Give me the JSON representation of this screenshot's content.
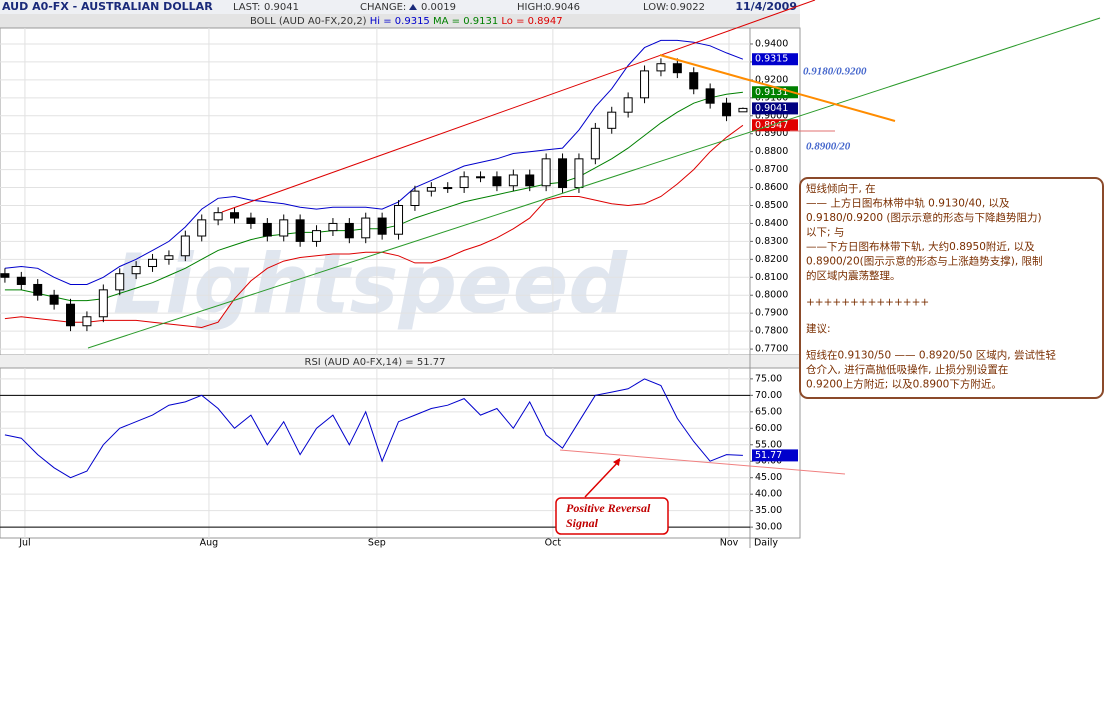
{
  "header": {
    "title": "AUD A0-FX - AUSTRALIAN DOLLAR",
    "last_label": "LAST:",
    "last": "0.9041",
    "change_label": "CHANGE:",
    "change": "0.0019",
    "high_label": "HIGH:",
    "high": "0.9046",
    "low_label": "LOW:",
    "low": "0.9022",
    "date": "11/4/2009"
  },
  "watermark": "Lightspeed",
  "chart_data": [
    {
      "type": "candlestick",
      "title": "BOLL (AUD A0-FX,20,2)",
      "xlim": [
        -0.3,
        45.43
      ],
      "ylim": [
        0.7667,
        0.9489
      ],
      "yticks": [
        {
          "value": 0.94,
          "label": "0.9400"
        },
        {
          "value": 0.93,
          "label": "0.9300"
        },
        {
          "value": 0.92,
          "label": "0.9200"
        },
        {
          "value": 0.91,
          "label": "0.9100"
        },
        {
          "value": 0.9,
          "label": "0.9000"
        },
        {
          "value": 0.89,
          "label": "0.8900"
        },
        {
          "value": 0.88,
          "label": "0.8800"
        },
        {
          "value": 0.87,
          "label": "0.8700"
        },
        {
          "value": 0.86,
          "label": "0.8600"
        },
        {
          "value": 0.85,
          "label": "0.8500"
        },
        {
          "value": 0.84,
          "label": "0.8400"
        },
        {
          "value": 0.83,
          "label": "0.8300"
        },
        {
          "value": 0.82,
          "label": "0.8200"
        },
        {
          "value": 0.81,
          "label": "0.8100"
        },
        {
          "value": 0.8,
          "label": "0.8000"
        },
        {
          "value": 0.79,
          "label": "0.7900"
        },
        {
          "value": 0.78,
          "label": "0.7800"
        },
        {
          "value": 0.77,
          "label": "0.7700"
        }
      ],
      "grid": true,
      "up_color": "#ffffff",
      "down_color": "#000000",
      "open": [
        0.812,
        0.81,
        0.806,
        0.8,
        0.795,
        0.783,
        0.788,
        0.803,
        0.812,
        0.816,
        0.82,
        0.822,
        0.833,
        0.842,
        0.846,
        0.843,
        0.84,
        0.833,
        0.842,
        0.83,
        0.836,
        0.84,
        0.832,
        0.843,
        0.834,
        0.85,
        0.858,
        0.86,
        0.86,
        0.866,
        0.866,
        0.861,
        0.867,
        0.861,
        0.876,
        0.86,
        0.876,
        0.893,
        0.902,
        0.91,
        0.925,
        0.929,
        0.924,
        0.915,
        0.907,
        0.9022
      ],
      "high": [
        0.815,
        0.813,
        0.809,
        0.803,
        0.798,
        0.791,
        0.806,
        0.815,
        0.819,
        0.823,
        0.825,
        0.836,
        0.845,
        0.849,
        0.849,
        0.846,
        0.843,
        0.845,
        0.845,
        0.839,
        0.843,
        0.843,
        0.846,
        0.846,
        0.853,
        0.861,
        0.863,
        0.863,
        0.869,
        0.869,
        0.869,
        0.87,
        0.87,
        0.879,
        0.879,
        0.879,
        0.896,
        0.905,
        0.913,
        0.928,
        0.932,
        0.932,
        0.927,
        0.918,
        0.91,
        0.9046
      ],
      "low": [
        0.807,
        0.803,
        0.797,
        0.792,
        0.78,
        0.78,
        0.785,
        0.8,
        0.809,
        0.813,
        0.817,
        0.819,
        0.83,
        0.839,
        0.84,
        0.837,
        0.83,
        0.83,
        0.827,
        0.827,
        0.833,
        0.829,
        0.829,
        0.831,
        0.831,
        0.847,
        0.855,
        0.857,
        0.857,
        0.863,
        0.858,
        0.858,
        0.858,
        0.858,
        0.857,
        0.857,
        0.873,
        0.89,
        0.899,
        0.907,
        0.922,
        0.921,
        0.912,
        0.904,
        0.897,
        0.9022
      ],
      "close": [
        0.81,
        0.806,
        0.8,
        0.795,
        0.783,
        0.788,
        0.803,
        0.812,
        0.816,
        0.82,
        0.822,
        0.833,
        0.842,
        0.846,
        0.843,
        0.84,
        0.833,
        0.842,
        0.83,
        0.836,
        0.84,
        0.832,
        0.843,
        0.834,
        0.85,
        0.858,
        0.86,
        0.86,
        0.866,
        0.866,
        0.861,
        0.867,
        0.861,
        0.876,
        0.86,
        0.876,
        0.893,
        0.902,
        0.91,
        0.925,
        0.929,
        0.924,
        0.915,
        0.907,
        0.9,
        0.9041
      ],
      "series": [
        {
          "name": "Hi = 0.9315",
          "color": "#0000cc",
          "values": [
            0.815,
            0.816,
            0.815,
            0.81,
            0.806,
            0.806,
            0.81,
            0.816,
            0.82,
            0.825,
            0.83,
            0.838,
            0.848,
            0.854,
            0.855,
            0.853,
            0.852,
            0.851,
            0.849,
            0.848,
            0.849,
            0.849,
            0.849,
            0.848,
            0.852,
            0.86,
            0.864,
            0.868,
            0.872,
            0.874,
            0.876,
            0.879,
            0.88,
            0.881,
            0.882,
            0.892,
            0.905,
            0.915,
            0.928,
            0.938,
            0.942,
            0.942,
            0.941,
            0.939,
            0.935,
            0.9315
          ]
        },
        {
          "name": "MA = 0.9131",
          "color": "#008000",
          "values": [
            0.803,
            0.803,
            0.801,
            0.799,
            0.797,
            0.797,
            0.798,
            0.801,
            0.804,
            0.807,
            0.811,
            0.815,
            0.82,
            0.825,
            0.828,
            0.831,
            0.833,
            0.834,
            0.835,
            0.835,
            0.836,
            0.836,
            0.837,
            0.837,
            0.839,
            0.843,
            0.846,
            0.849,
            0.852,
            0.854,
            0.856,
            0.858,
            0.86,
            0.862,
            0.863,
            0.866,
            0.871,
            0.876,
            0.882,
            0.889,
            0.896,
            0.902,
            0.907,
            0.91,
            0.912,
            0.9131
          ]
        },
        {
          "name": "Lo = 0.8947",
          "color": "#dd0000",
          "values": [
            0.787,
            0.788,
            0.787,
            0.786,
            0.785,
            0.785,
            0.786,
            0.786,
            0.786,
            0.785,
            0.784,
            0.783,
            0.782,
            0.785,
            0.798,
            0.808,
            0.815,
            0.819,
            0.821,
            0.822,
            0.823,
            0.823,
            0.824,
            0.824,
            0.822,
            0.818,
            0.818,
            0.821,
            0.825,
            0.828,
            0.832,
            0.837,
            0.843,
            0.853,
            0.855,
            0.855,
            0.853,
            0.851,
            0.85,
            0.851,
            0.855,
            0.862,
            0.87,
            0.88,
            0.888,
            0.8947
          ]
        }
      ],
      "tags": [
        {
          "value": 0.9315,
          "color": "#0000cc"
        },
        {
          "value": 0.9131,
          "color": "#008000"
        },
        {
          "value": 0.9041,
          "color": "#000080"
        },
        {
          "value": 0.8947,
          "color": "#e00000"
        }
      ]
    },
    {
      "type": "line",
      "title": "RSI (AUD A0-FX,14) = 51.77",
      "xlim": [
        -0.3,
        45.43
      ],
      "ylim": [
        26.7,
        78.3
      ],
      "yticks": [
        {
          "value": 75,
          "label": "75.00"
        },
        {
          "value": 70,
          "label": "70.00"
        },
        {
          "value": 65,
          "label": "65.00"
        },
        {
          "value": 60,
          "label": "60.00"
        },
        {
          "value": 55,
          "label": "55.00"
        },
        {
          "value": 50,
          "label": "50.00"
        },
        {
          "value": 45,
          "label": "45.00"
        },
        {
          "value": 40,
          "label": "40.00"
        },
        {
          "value": 35,
          "label": "35.00"
        },
        {
          "value": 30,
          "label": "30.00"
        }
      ],
      "grid": true,
      "reference_lines": [
        70,
        30
      ],
      "series": [
        {
          "color": "#0000cc",
          "values": [
            58,
            57,
            52,
            48,
            45,
            47,
            55,
            60,
            62,
            64,
            67,
            68,
            70,
            66,
            60,
            64,
            55,
            62,
            52,
            60,
            64,
            55,
            65,
            50,
            62,
            64,
            66,
            67,
            69,
            64,
            66,
            60,
            68,
            58,
            54,
            62,
            70,
            71,
            72,
            75,
            73,
            63,
            56,
            50,
            52,
            51.77
          ]
        }
      ],
      "tags": [
        {
          "value": 51.77,
          "color": "#0000cc"
        }
      ],
      "xticks": [
        {
          "value": 1.22,
          "label": "Jul"
        },
        {
          "value": 12.44,
          "label": "Aug"
        },
        {
          "value": 22.68,
          "label": "Sep"
        },
        {
          "value": 33.41,
          "label": "Oct"
        },
        {
          "value": 44.15,
          "label": "Nov"
        }
      ],
      "period": "Daily"
    }
  ],
  "annotations": {
    "resistance": "0.9180/0.9200",
    "support": "0.8900/20",
    "signal": [
      "Positive Reversal",
      "Signal"
    ]
  },
  "commentary": [
    [
      "短线倾向于, 在",
      "—— 上方日图布林带中轨 0.9130/40, 以及",
      "0.9180/0.9200 (图示示意的形态与下降趋势阻力)",
      "以下; 与",
      "——下方日图布林带下轨, 大约0.8950附近, 以及",
      "0.8900/20(图示示意的形态与上涨趋势支撑), 限制",
      "的区域内震荡整理。"
    ],
    [
      "++++++++++++++"
    ],
    [
      "建议:"
    ],
    [
      "短线在0.9130/50 —— 0.8920/50 区域内, 尝试性轻",
      "仓介入, 进行高抛低吸操作, 止损分别设置在",
      "0.9200上方附近; 以及0.8900下方附近。"
    ]
  ]
}
